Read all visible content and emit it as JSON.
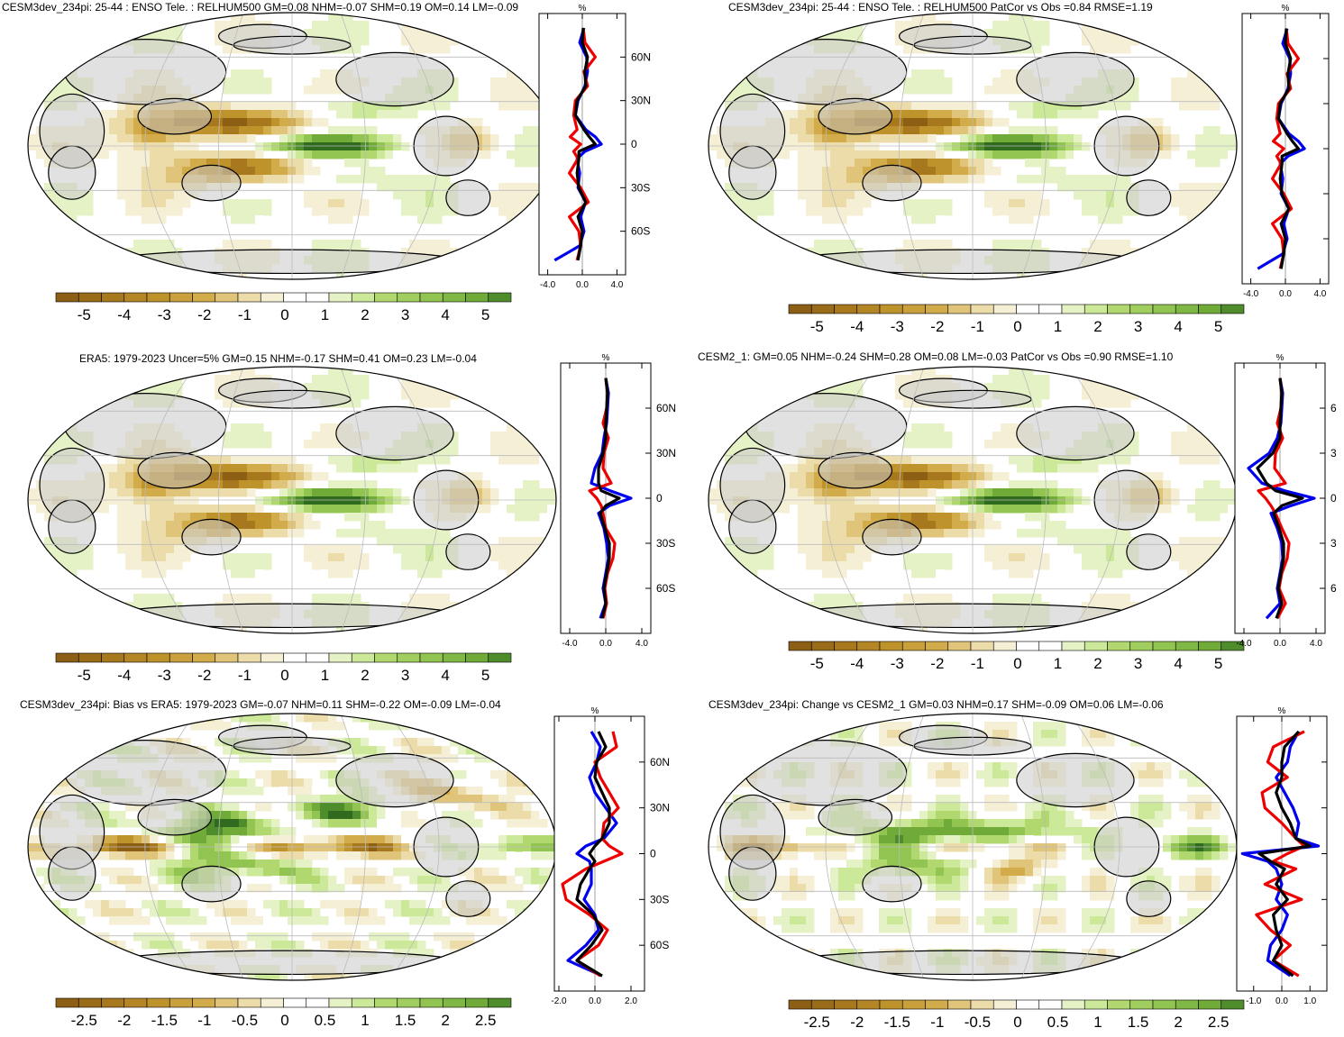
{
  "palette": {
    "colors": [
      "#8c5f14",
      "#a8781e",
      "#bf932c",
      "#d2ac4a",
      "#dfc47a",
      "#ecdca9",
      "#f5efd6",
      "#ffffff",
      "#ffffff",
      "#e4f2c6",
      "#cce99a",
      "#b0d86e",
      "#91c450",
      "#70ab3a",
      "#4f8c2c",
      "#2f6a1e"
    ],
    "land": "#c8c8c8",
    "ocean_bg": "#ffffff",
    "zonal_colors": {
      "model": "#0000ee",
      "obs": "#ee0000",
      "black": "#000000"
    }
  },
  "panels": [
    {
      "id": "p1",
      "title": "CESM3dev_234pi: 25-44 : ENSO Tele. : RELHUM500 GM=0.08 NHM=-0.07 SHM=0.19 OM=0.14 LM=-0.09",
      "colorbar_labels": [
        "-5",
        "-4",
        "-3",
        "-2",
        "-1",
        "0",
        "1",
        "2",
        "3",
        "4",
        "5"
      ],
      "zonal_xticks": [
        "-4.0",
        "0.0",
        "4.0"
      ],
      "zonal_unit": "%",
      "lat_labels": [
        "60N",
        "30N",
        "0",
        "30S",
        "60S"
      ]
    },
    {
      "id": "p2",
      "title": "CESM3dev_234pi: 25-44 : ENSO Tele. : RELHUM500 PatCor vs Obs =0.84 RMSE=1.19",
      "colorbar_labels": [
        "-5",
        "-4",
        "-3",
        "-2",
        "-1",
        "0",
        "1",
        "2",
        "3",
        "4",
        "5"
      ],
      "zonal_xticks": [
        "-4.0",
        "0.0",
        "4.0"
      ],
      "zonal_unit": "%",
      "lat_labels": [
        "",
        "",
        "",
        "",
        ""
      ]
    },
    {
      "id": "p3",
      "title": "ERA5: 1979-2023 Uncer=5% GM=0.15 NHM=-0.17 SHM=0.41 OM=0.23 LM=-0.04",
      "colorbar_labels": [
        "-5",
        "-4",
        "-3",
        "-2",
        "-1",
        "0",
        "1",
        "2",
        "3",
        "4",
        "5"
      ],
      "zonal_xticks": [
        "-4.0",
        "0.0",
        "4.0"
      ],
      "zonal_unit": "%",
      "lat_labels": [
        "60N",
        "30N",
        "0",
        "30S",
        "60S"
      ]
    },
    {
      "id": "p4",
      "title": "CESM2_1: GM=0.05 NHM=-0.24 SHM=0.28 OM=0.08 LM=-0.03 PatCor vs Obs =0.90 RMSE=1.10",
      "colorbar_labels": [
        "-5",
        "-4",
        "-3",
        "-2",
        "-1",
        "0",
        "1",
        "2",
        "3",
        "4",
        "5"
      ],
      "zonal_xticks": [
        "-4.0",
        "0.0",
        "4.0"
      ],
      "zonal_unit": "%",
      "lat_labels": [
        "6",
        "3",
        "0",
        "3",
        "6"
      ]
    },
    {
      "id": "p5",
      "title": "CESM3dev_234pi: Bias vs ERA5: 1979-2023 GM=-0.07 NHM=0.11 SHM=-0.22 OM=-0.09 LM=-0.04",
      "colorbar_labels": [
        "-2.5",
        "-2",
        "-1.5",
        "-1",
        "-0.5",
        "0",
        "0.5",
        "1",
        "1.5",
        "2",
        "2.5"
      ],
      "zonal_xticks": [
        "-2.0",
        "0.0",
        "2.0"
      ],
      "zonal_unit": "%",
      "lat_labels": [
        "60N",
        "30N",
        "0",
        "30S",
        "60S"
      ]
    },
    {
      "id": "p6",
      "title": "CESM3dev_234pi: Change vs CESM2_1 GM=0.03 NHM=0.17 SHM=-0.09 OM=0.06 LM=-0.06",
      "colorbar_labels": [
        "-2.5",
        "-2",
        "-1.5",
        "-1",
        "-0.5",
        "0",
        "0.5",
        "1",
        "1.5",
        "2",
        "2.5"
      ],
      "zonal_xticks": [
        "-1.0",
        "0.0",
        "1.0"
      ],
      "zonal_unit": "%",
      "lat_labels": [
        "",
        "",
        "",
        "",
        ""
      ]
    }
  ],
  "chart_data": [
    {
      "type": "heatmap",
      "panel": "p1",
      "title": "CESM3dev_234pi: 25-44 : ENSO Tele. : RELHUM500 GM=0.08 NHM=-0.07 SHM=0.19 OM=0.14 LM=-0.09",
      "value_range": [
        -5,
        5
      ],
      "zonal_mean": {
        "lat": [
          80,
          70,
          60,
          50,
          40,
          30,
          20,
          10,
          5,
          0,
          -5,
          -10,
          -20,
          -30,
          -40,
          -50,
          -60,
          -70,
          -80
        ],
        "series": [
          {
            "color": "blue",
            "values": [
              0.2,
              -0.3,
              0.5,
              0.6,
              0.3,
              -0.5,
              -0.8,
              0.4,
              1.5,
              2.2,
              0.3,
              -0.6,
              -0.3,
              -0.5,
              0.4,
              -0.2,
              0.2,
              -0.3,
              -3.2
            ]
          },
          {
            "color": "red",
            "values": [
              0.1,
              0.3,
              1.5,
              0.2,
              0.6,
              -0.8,
              -1.0,
              -0.6,
              -1.4,
              -0.2,
              -1.0,
              -0.5,
              -1.5,
              -0.2,
              0.7,
              -1.5,
              -0.4,
              -0.2,
              -0.6
            ]
          },
          {
            "color": "black",
            "values": [
              0.1,
              0.0,
              0.6,
              0.3,
              0.4,
              -0.6,
              -0.8,
              0.2,
              0.8,
              1.5,
              -0.4,
              -0.4,
              -0.6,
              -0.4,
              0.4,
              -0.5,
              0.0,
              -0.2,
              -0.5
            ]
          }
        ]
      }
    },
    {
      "type": "heatmap",
      "panel": "p2",
      "title": "CESM3dev_234pi: 25-44 : ENSO Tele. : RELHUM500 PatCor vs Obs =0.84 RMSE=1.19",
      "value_range": [
        -5,
        5
      ],
      "zonal_mean": {
        "lat": [
          80,
          70,
          60,
          50,
          40,
          30,
          20,
          10,
          5,
          0,
          -5,
          -10,
          -20,
          -30,
          -40,
          -50,
          -60,
          -70,
          -80
        ],
        "series": [
          {
            "color": "blue",
            "values": [
              0.2,
              -0.3,
              0.5,
              0.6,
              0.3,
              -0.5,
              -0.8,
              0.4,
              1.5,
              2.2,
              0.3,
              -0.6,
              -0.3,
              -0.5,
              0.4,
              -0.2,
              0.2,
              -0.3,
              -3.2
            ]
          },
          {
            "color": "red",
            "values": [
              0.1,
              0.3,
              1.5,
              0.2,
              0.6,
              -0.8,
              -1.0,
              -0.6,
              -1.4,
              -0.2,
              -1.0,
              -0.5,
              -1.5,
              -0.2,
              0.7,
              -1.5,
              -0.4,
              -0.2,
              -0.6
            ]
          },
          {
            "color": "black",
            "values": [
              0.1,
              0.0,
              0.6,
              0.3,
              0.4,
              -0.6,
              -0.8,
              0.2,
              0.8,
              1.5,
              -0.4,
              -0.4,
              -0.6,
              -0.4,
              0.4,
              -0.5,
              0.0,
              -0.2,
              -0.5
            ]
          }
        ]
      }
    },
    {
      "type": "heatmap",
      "panel": "p3",
      "title": "ERA5: 1979-2023 Uncer=5% GM=0.15 NHM=-0.17 SHM=0.41 OM=0.23 LM=-0.04",
      "value_range": [
        -5,
        5
      ],
      "zonal_mean": {
        "lat": [
          80,
          70,
          60,
          50,
          40,
          30,
          20,
          10,
          5,
          0,
          -5,
          -10,
          -20,
          -30,
          -40,
          -50,
          -60,
          -70,
          -80
        ],
        "series": [
          {
            "color": "blue",
            "values": [
              0.0,
              0.3,
              0.2,
              0.1,
              -0.2,
              -0.4,
              -1.2,
              -1.6,
              0.5,
              2.8,
              0.4,
              -0.8,
              -0.2,
              0.1,
              0.3,
              0.0,
              -0.3,
              0.0,
              -0.6
            ]
          },
          {
            "color": "red",
            "values": [
              0.0,
              0.2,
              0.1,
              -0.3,
              0.3,
              -0.2,
              -0.3,
              0.6,
              -1.8,
              -1.0,
              -0.5,
              -0.3,
              0.0,
              1.0,
              0.8,
              0.2,
              -0.1,
              0.1,
              -0.3
            ]
          },
          {
            "color": "black",
            "values": [
              0.0,
              0.2,
              0.1,
              0.0,
              0.0,
              -0.3,
              -0.8,
              -0.8,
              -0.5,
              1.5,
              0.0,
              -0.6,
              -0.1,
              0.4,
              0.4,
              0.1,
              -0.2,
              0.0,
              -0.4
            ]
          }
        ]
      }
    },
    {
      "type": "heatmap",
      "panel": "p4",
      "title": "CESM2_1: GM=0.05 NHM=-0.24 SHM=0.28 OM=0.08 LM=-0.03 PatCor vs Obs =0.90 RMSE=1.10",
      "value_range": [
        -5,
        5
      ],
      "zonal_mean": {
        "lat": [
          80,
          70,
          60,
          50,
          40,
          30,
          20,
          10,
          5,
          0,
          -5,
          -10,
          -20,
          -30,
          -40,
          -50,
          -60,
          -70,
          -80
        ],
        "series": [
          {
            "color": "blue",
            "values": [
              0.0,
              0.3,
              0.2,
              0.1,
              -0.3,
              -1.2,
              -3.5,
              -2.0,
              0.5,
              3.8,
              1.2,
              -1.0,
              -0.3,
              0.2,
              0.3,
              0.0,
              -0.3,
              0.0,
              -1.5
            ]
          },
          {
            "color": "red",
            "values": [
              0.0,
              0.2,
              0.1,
              -0.3,
              0.3,
              -0.5,
              -0.6,
              0.6,
              -2.4,
              -1.6,
              -1.0,
              -0.5,
              0.2,
              1.0,
              0.8,
              0.2,
              -0.1,
              0.6,
              -0.3
            ]
          },
          {
            "color": "black",
            "values": [
              0.0,
              0.2,
              0.1,
              0.0,
              0.0,
              -0.8,
              -2.5,
              -1.5,
              -0.5,
              2.5,
              0.2,
              -0.7,
              -0.1,
              0.4,
              0.4,
              0.1,
              -0.2,
              0.2,
              -0.4
            ]
          }
        ]
      }
    },
    {
      "type": "heatmap",
      "panel": "p5",
      "title": "CESM3dev_234pi: Bias vs ERA5: 1979-2023 GM=-0.07 NHM=0.11 SHM=-0.22 OM=-0.09 LM=-0.04",
      "value_range": [
        -2.5,
        2.5
      ],
      "zonal_mean": {
        "lat": [
          80,
          70,
          60,
          50,
          40,
          30,
          20,
          10,
          5,
          0,
          -5,
          -10,
          -20,
          -30,
          -40,
          -50,
          -60,
          -70,
          -80
        ],
        "series": [
          {
            "color": "blue",
            "values": [
              -0.2,
              0.3,
              0.1,
              -0.3,
              0.0,
              0.6,
              1.2,
              0.5,
              -0.5,
              -1.0,
              -0.3,
              -0.2,
              -0.2,
              -0.6,
              0.0,
              0.2,
              -0.5,
              -1.5,
              0.4
            ]
          },
          {
            "color": "red",
            "values": [
              1.0,
              1.2,
              0.0,
              0.3,
              0.8,
              1.3,
              0.5,
              0.4,
              0.8,
              1.5,
              0.5,
              -0.5,
              -1.8,
              -1.6,
              -0.3,
              0.7,
              0.2,
              -1.0,
              0.3
            ]
          },
          {
            "color": "black",
            "values": [
              0.2,
              0.6,
              0.1,
              0.0,
              0.4,
              0.8,
              0.8,
              0.4,
              0.0,
              -0.3,
              0.0,
              -0.3,
              -0.8,
              -1.0,
              -0.1,
              0.4,
              -0.2,
              -1.0,
              0.4
            ]
          }
        ]
      }
    },
    {
      "type": "heatmap",
      "panel": "p6",
      "title": "CESM3dev_234pi: Change vs CESM2_1 GM=0.03 NHM=0.17 SHM=-0.09 OM=0.06 LM=-0.06",
      "value_range": [
        -2.5,
        2.5
      ],
      "zonal_mean": {
        "lat": [
          80,
          70,
          60,
          50,
          40,
          30,
          20,
          10,
          5,
          0,
          -5,
          -10,
          -20,
          -30,
          -40,
          -50,
          -60,
          -70,
          -80
        ],
        "series": [
          {
            "color": "blue",
            "values": [
              0.6,
              0.3,
              0.2,
              -0.2,
              0.1,
              0.4,
              0.6,
              0.5,
              1.3,
              -1.4,
              -0.5,
              -0.2,
              0.0,
              -0.2,
              0.2,
              0.0,
              -0.4,
              -0.5,
              0.3
            ]
          },
          {
            "color": "red",
            "values": [
              0.8,
              -0.3,
              -0.5,
              0.2,
              -0.7,
              -0.6,
              0.0,
              0.5,
              0.8,
              0.2,
              -0.3,
              0.5,
              -0.6,
              0.7,
              -0.9,
              -0.4,
              0.3,
              -0.3,
              0.6
            ]
          },
          {
            "color": "black",
            "values": [
              0.6,
              0.1,
              0.0,
              0.0,
              -0.2,
              0.0,
              0.3,
              0.5,
              1.0,
              -0.8,
              -0.4,
              0.1,
              -0.2,
              0.2,
              -0.3,
              -0.2,
              0.0,
              -0.3,
              0.4
            ]
          }
        ]
      }
    }
  ]
}
